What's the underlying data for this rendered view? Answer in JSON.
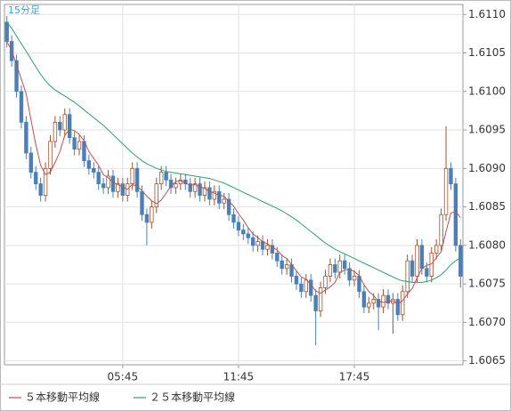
{
  "chart_data": {
    "type": "candlestick",
    "title": "15分足",
    "ylim": [
      1.60645,
      1.61113
    ],
    "yticks": [
      1.6065,
      {
        "value": 1.607,
        "label": "1.6070"
      },
      1.6075,
      {
        "value": 1.608,
        "label": "1.6080"
      },
      1.6085,
      {
        "value": 1.609,
        "label": "1.6090"
      },
      1.6095,
      {
        "value": 1.61,
        "label": "1.6100"
      },
      1.6105,
      {
        "value": 1.611,
        "label": "1.6110"
      }
    ],
    "xlim": [
      -0.5,
      94.5
    ],
    "xticks": [
      {
        "value": 24,
        "label": "05:45"
      },
      {
        "value": 48,
        "label": "11:45"
      },
      {
        "value": 72,
        "label": "17:45"
      }
    ],
    "grid": true,
    "up_color": "#a0522d",
    "down_color": "#4a80b8",
    "open": [
      1.6109,
      1.61065,
      1.6104,
      1.61,
      1.6096,
      1.6092,
      1.60895,
      1.6088,
      1.60865,
      1.609,
      1.60935,
      1.6096,
      1.6095,
      1.6097,
      1.6094,
      1.60925,
      1.60935,
      1.6091,
      1.609,
      1.60895,
      1.6088,
      1.60875,
      1.6089,
      1.6087,
      1.6088,
      1.60865,
      1.6088,
      1.609,
      1.6087,
      1.6084,
      1.6083,
      1.6085,
      1.6088,
      1.60895,
      1.60885,
      1.60875,
      1.6088,
      1.60885,
      1.6088,
      1.6087,
      1.6088,
      1.60865,
      1.60875,
      1.6086,
      1.6087,
      1.60855,
      1.6086,
      1.6084,
      1.6083,
      1.6082,
      1.60815,
      1.6081,
      1.608,
      1.60805,
      1.60795,
      1.608,
      1.6079,
      1.6078,
      1.6077,
      1.60775,
      1.6076,
      1.6075,
      1.6074,
      1.60755,
      1.60735,
      1.60715,
      1.60745,
      1.6076,
      1.60775,
      1.60765,
      1.6078,
      1.6077,
      1.60755,
      1.6076,
      1.6074,
      1.6072,
      1.60725,
      1.6073,
      1.6072,
      1.60735,
      1.60725,
      1.6073,
      1.6071,
      1.6074,
      1.6078,
      1.6076,
      1.608,
      1.6077,
      1.6076,
      1.6079,
      1.608,
      1.6084,
      1.609,
      1.6088,
      1.608
    ],
    "high": [
      1.61098,
      1.61073,
      1.61048,
      1.61008,
      1.60968,
      1.60928,
      1.60903,
      1.60888,
      1.60908,
      1.60943,
      1.60968,
      1.60968,
      1.60978,
      1.60978,
      1.60948,
      1.60943,
      1.60943,
      1.60918,
      1.60908,
      1.60903,
      1.60888,
      1.60898,
      1.60898,
      1.60888,
      1.60888,
      1.60888,
      1.60908,
      1.60908,
      1.60878,
      1.60848,
      1.60858,
      1.60888,
      1.60903,
      1.60903,
      1.60893,
      1.60888,
      1.60893,
      1.60893,
      1.60888,
      1.60888,
      1.60888,
      1.60883,
      1.60883,
      1.60878,
      1.60878,
      1.60868,
      1.60868,
      1.60848,
      1.60838,
      1.60828,
      1.60823,
      1.60818,
      1.60813,
      1.60813,
      1.60808,
      1.60808,
      1.60798,
      1.60788,
      1.60783,
      1.60783,
      1.60768,
      1.60758,
      1.60763,
      1.60763,
      1.60743,
      1.60753,
      1.60768,
      1.60783,
      1.60783,
      1.60788,
      1.60788,
      1.60778,
      1.60768,
      1.60768,
      1.60748,
      1.60733,
      1.60738,
      1.60738,
      1.60743,
      1.60743,
      1.60738,
      1.60738,
      1.60748,
      1.60788,
      1.60788,
      1.60808,
      1.60808,
      1.60778,
      1.60798,
      1.60808,
      1.60848,
      1.60955,
      1.60908,
      1.60888,
      1.60808
    ],
    "low": [
      1.61057,
      1.61032,
      1.60992,
      1.60952,
      1.60912,
      1.60887,
      1.60872,
      1.60857,
      1.60857,
      1.60892,
      1.60927,
      1.60942,
      1.60942,
      1.60932,
      1.60917,
      1.60917,
      1.60902,
      1.60892,
      1.60887,
      1.60872,
      1.60867,
      1.60867,
      1.60862,
      1.60862,
      1.60857,
      1.60857,
      1.60872,
      1.60862,
      1.60832,
      1.608,
      1.60822,
      1.60842,
      1.60872,
      1.60877,
      1.60867,
      1.60867,
      1.60872,
      1.60872,
      1.60862,
      1.60862,
      1.60857,
      1.60857,
      1.60852,
      1.60852,
      1.60847,
      1.60847,
      1.60832,
      1.60822,
      1.60812,
      1.60807,
      1.60802,
      1.60792,
      1.60792,
      1.60787,
      1.60787,
      1.60782,
      1.60772,
      1.60762,
      1.60762,
      1.60752,
      1.60742,
      1.60732,
      1.60732,
      1.60727,
      1.6067,
      1.60707,
      1.60737,
      1.60752,
      1.60757,
      1.60757,
      1.60762,
      1.60747,
      1.60747,
      1.60732,
      1.60712,
      1.60712,
      1.60717,
      1.6069,
      1.60712,
      1.60717,
      1.60685,
      1.60702,
      1.60702,
      1.60732,
      1.60752,
      1.60752,
      1.60762,
      1.60752,
      1.60752,
      1.60782,
      1.60792,
      1.60832,
      1.60872,
      1.60792,
      1.60745
    ],
    "close": [
      1.61065,
      1.6104,
      1.61,
      1.6096,
      1.6092,
      1.60895,
      1.6088,
      1.60865,
      1.609,
      1.60935,
      1.6096,
      1.6095,
      1.6097,
      1.6094,
      1.60925,
      1.60935,
      1.6091,
      1.609,
      1.60895,
      1.6088,
      1.60875,
      1.6089,
      1.6087,
      1.6088,
      1.60865,
      1.6088,
      1.609,
      1.6087,
      1.6084,
      1.6083,
      1.6085,
      1.6088,
      1.60895,
      1.60885,
      1.60875,
      1.6088,
      1.60885,
      1.6088,
      1.6087,
      1.6088,
      1.60865,
      1.60875,
      1.6086,
      1.6087,
      1.60855,
      1.6086,
      1.6084,
      1.6083,
      1.6082,
      1.60815,
      1.6081,
      1.608,
      1.60805,
      1.60795,
      1.608,
      1.6079,
      1.6078,
      1.6077,
      1.60775,
      1.6076,
      1.6075,
      1.6074,
      1.60755,
      1.60735,
      1.60715,
      1.60745,
      1.6076,
      1.60775,
      1.60765,
      1.6078,
      1.6077,
      1.60755,
      1.6076,
      1.6074,
      1.6072,
      1.60725,
      1.6073,
      1.6072,
      1.60735,
      1.60725,
      1.6073,
      1.6071,
      1.6074,
      1.6078,
      1.6076,
      1.608,
      1.6077,
      1.6076,
      1.6079,
      1.608,
      1.6084,
      1.609,
      1.6088,
      1.608,
      1.6076
    ],
    "series": [
      {
        "name": "５本移動平均線",
        "color": "#c0504d",
        "values": [
          1.61065,
          1.61053,
          1.61035,
          1.61016,
          1.60997,
          1.60963,
          1.60931,
          1.60904,
          1.60892,
          1.60895,
          1.60908,
          1.60922,
          1.60943,
          1.60951,
          1.60949,
          1.60944,
          1.60936,
          1.60922,
          1.60913,
          1.60904,
          1.60892,
          1.60888,
          1.60882,
          1.60879,
          1.60876,
          1.60873,
          1.60879,
          1.60877,
          1.60871,
          1.60864,
          1.60858,
          1.60854,
          1.60859,
          1.60868,
          1.60877,
          1.60883,
          1.60884,
          1.60881,
          1.60878,
          1.60879,
          1.60876,
          1.60874,
          1.6087,
          1.60868,
          1.60865,
          1.60864,
          1.60857,
          1.60851,
          1.60841,
          1.60833,
          1.60823,
          1.60815,
          1.6081,
          1.60805,
          1.60802,
          1.60798,
          1.60794,
          1.60787,
          1.60783,
          1.60775,
          1.60767,
          1.60759,
          1.60756,
          1.60749,
          1.60741,
          1.60738,
          1.60742,
          1.60746,
          1.60752,
          1.60765,
          1.60768,
          1.60769,
          1.60766,
          1.60761,
          1.60749,
          1.6074,
          1.60735,
          1.60727,
          1.60726,
          1.60727,
          1.60728,
          1.60724,
          1.60728,
          1.60737,
          1.60744,
          1.60758,
          1.6077,
          1.60774,
          1.60776,
          1.60784,
          1.60792,
          1.60818,
          1.60842,
          1.60844,
          1.60836
        ]
      },
      {
        "name": "２５本移動平均線",
        "color": "#2e9e6e",
        "values": [
          1.6109,
          1.61082,
          1.61072,
          1.61062,
          1.61052,
          1.61042,
          1.61032,
          1.61022,
          1.61014,
          1.61007,
          1.61002,
          1.60998,
          1.60994,
          1.6099,
          1.60986,
          1.60981,
          1.60976,
          1.60971,
          1.60966,
          1.60961,
          1.60956,
          1.6095,
          1.60944,
          1.60938,
          1.60932,
          1.60926,
          1.6092,
          1.60915,
          1.6091,
          1.60906,
          1.60903,
          1.609,
          1.60898,
          1.60896,
          1.60895,
          1.60894,
          1.60893,
          1.60892,
          1.60891,
          1.6089,
          1.60889,
          1.60888,
          1.60887,
          1.60885,
          1.60883,
          1.60881,
          1.60878,
          1.60875,
          1.60872,
          1.60869,
          1.60866,
          1.60863,
          1.6086,
          1.60857,
          1.60854,
          1.60851,
          1.60848,
          1.60845,
          1.60841,
          1.60837,
          1.60833,
          1.60828,
          1.60823,
          1.60818,
          1.60813,
          1.60808,
          1.60803,
          1.60799,
          1.60795,
          1.60792,
          1.60789,
          1.60786,
          1.60783,
          1.6078,
          1.60777,
          1.60774,
          1.60771,
          1.60768,
          1.60765,
          1.60762,
          1.60759,
          1.60756,
          1.60754,
          1.60753,
          1.60752,
          1.60752,
          1.60752,
          1.60753,
          1.60755,
          1.60758,
          1.60762,
          1.60768,
          1.60775,
          1.6078,
          1.60784
        ]
      }
    ]
  }
}
